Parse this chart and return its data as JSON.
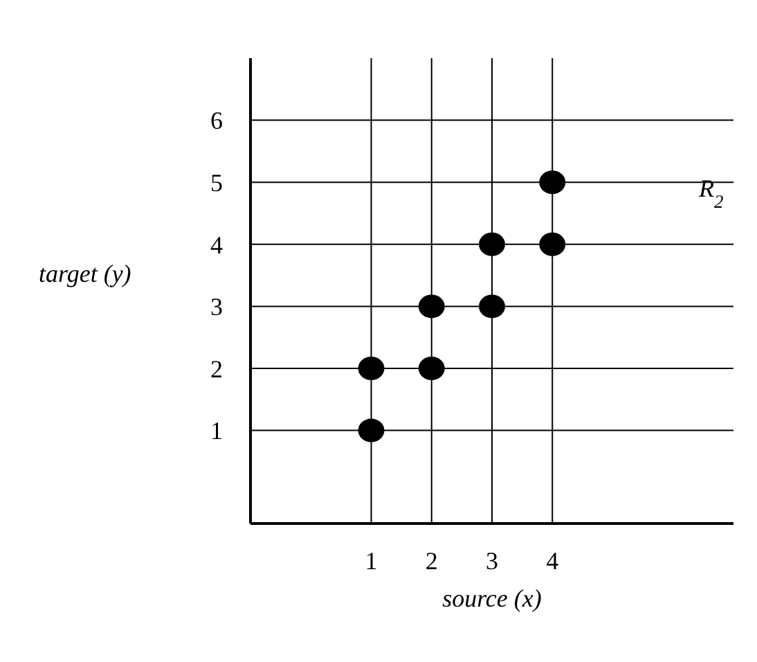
{
  "chart_data": {
    "type": "scatter",
    "xlabel": "source (x)",
    "ylabel": "target (y)",
    "annotations": [
      "R$_{2}$"
    ],
    "x": [
      1,
      1,
      2,
      2,
      3,
      3,
      4,
      4
    ],
    "series": [
      {
        "color": "#000000",
        "values": [
          1,
          2,
          2,
          3,
          3,
          4,
          4,
          5
        ]
      }
    ],
    "xlim": [
      -1,
      7
    ],
    "ylim": [
      -0.5,
      7
    ],
    "xticks": [
      1,
      2,
      3,
      4
    ],
    "yticks": [
      1,
      2,
      3,
      4,
      5,
      6
    ],
    "grid": true,
    "marker": "circle"
  }
}
